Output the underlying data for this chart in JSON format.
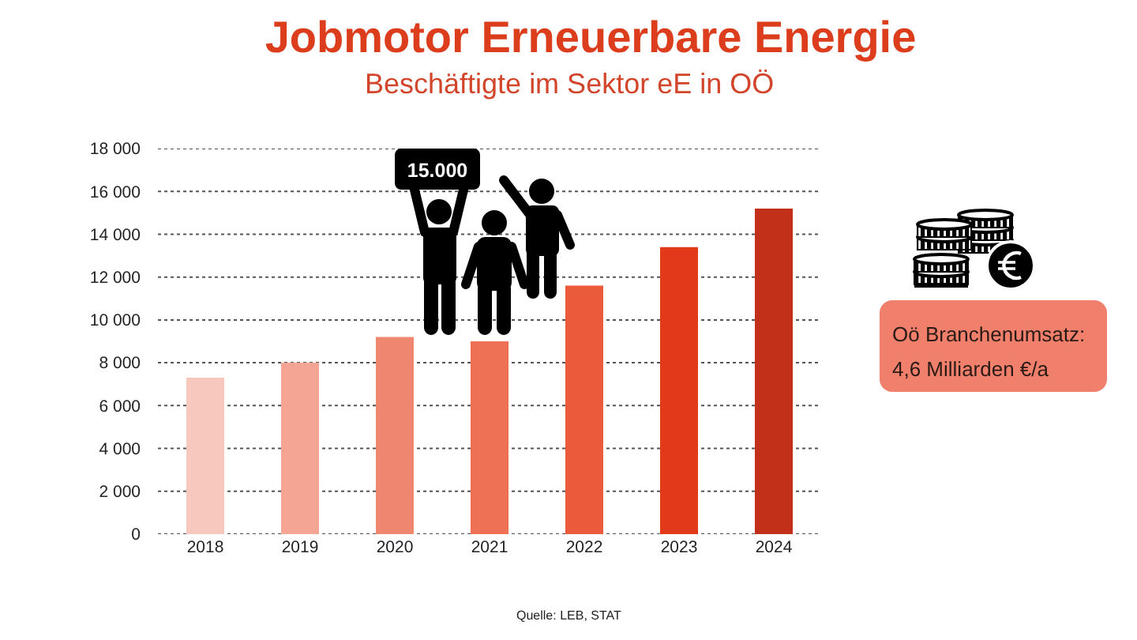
{
  "chart_data": {
    "type": "bar",
    "title": "Jobmotor Erneuerbare Energie",
    "subtitle": "Beschäftigte im Sektor eE in OÖ",
    "categories": [
      "2018",
      "2019",
      "2020",
      "2021",
      "2022",
      "2023",
      "2024"
    ],
    "values": [
      7300,
      8000,
      9200,
      9000,
      11600,
      13400,
      15200
    ],
    "colors": [
      "#f7c8bd",
      "#f4a594",
      "#ef866f",
      "#ee7156",
      "#eb5a3b",
      "#e1391a",
      "#c3301a"
    ],
    "ylim": [
      0,
      18000
    ],
    "yticks": [
      0,
      {
        "value": 2000,
        "label": "2 000"
      },
      {
        "value": 4000,
        "label": "4 000"
      },
      {
        "value": 6000,
        "label": "6 000"
      },
      {
        "value": 8000,
        "label": "8 000"
      },
      {
        "value": 10000,
        "label": "10 000"
      },
      {
        "value": 12000,
        "label": "12 000"
      },
      {
        "value": 14000,
        "label": "14 000"
      },
      {
        "value": 16000,
        "label": "16 000"
      },
      {
        "value": 18000,
        "label": "18 000"
      }
    ],
    "grid": "y",
    "annotations": [
      "15.000",
      "Oö Branchenumsatz:",
      "4,6 Milliarden €/a",
      "Quelle: LEB, STAT"
    ]
  }
}
